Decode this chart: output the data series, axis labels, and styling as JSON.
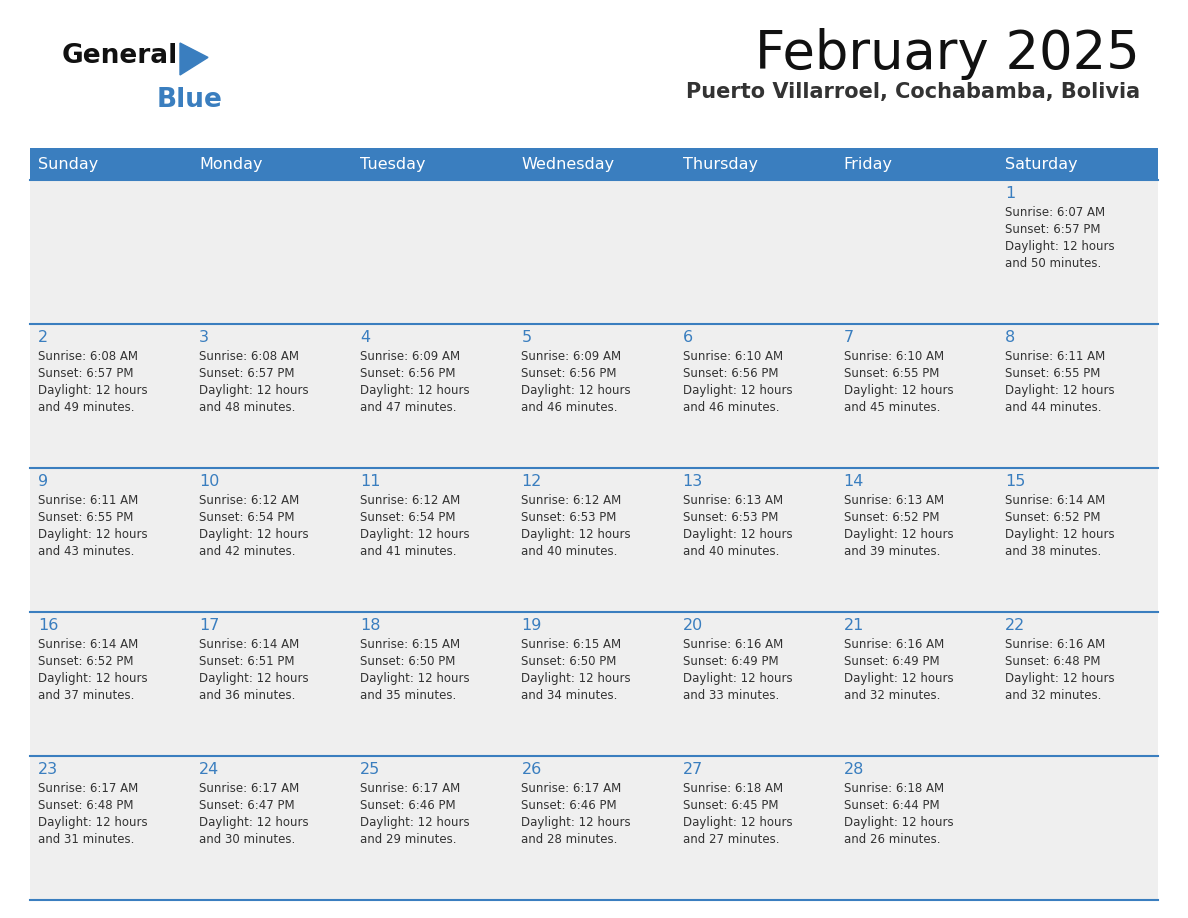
{
  "title": "February 2025",
  "subtitle": "Puerto Villarroel, Cochabamba, Bolivia",
  "header_color": "#3a7ebf",
  "header_text_color": "#ffffff",
  "cell_bg_color": "#efefef",
  "border_color": "#3a7ebf",
  "text_color": "#333333",
  "day_number_color": "#3a7ebf",
  "day_headers": [
    "Sunday",
    "Monday",
    "Tuesday",
    "Wednesday",
    "Thursday",
    "Friday",
    "Saturday"
  ],
  "days": [
    {
      "day": 1,
      "col": 6,
      "row": 0,
      "sunrise": "6:07 AM",
      "sunset": "6:57 PM",
      "daylight": "12 hours and 50 minutes"
    },
    {
      "day": 2,
      "col": 0,
      "row": 1,
      "sunrise": "6:08 AM",
      "sunset": "6:57 PM",
      "daylight": "12 hours and 49 minutes"
    },
    {
      "day": 3,
      "col": 1,
      "row": 1,
      "sunrise": "6:08 AM",
      "sunset": "6:57 PM",
      "daylight": "12 hours and 48 minutes"
    },
    {
      "day": 4,
      "col": 2,
      "row": 1,
      "sunrise": "6:09 AM",
      "sunset": "6:56 PM",
      "daylight": "12 hours and 47 minutes"
    },
    {
      "day": 5,
      "col": 3,
      "row": 1,
      "sunrise": "6:09 AM",
      "sunset": "6:56 PM",
      "daylight": "12 hours and 46 minutes"
    },
    {
      "day": 6,
      "col": 4,
      "row": 1,
      "sunrise": "6:10 AM",
      "sunset": "6:56 PM",
      "daylight": "12 hours and 46 minutes"
    },
    {
      "day": 7,
      "col": 5,
      "row": 1,
      "sunrise": "6:10 AM",
      "sunset": "6:55 PM",
      "daylight": "12 hours and 45 minutes"
    },
    {
      "day": 8,
      "col": 6,
      "row": 1,
      "sunrise": "6:11 AM",
      "sunset": "6:55 PM",
      "daylight": "12 hours and 44 minutes"
    },
    {
      "day": 9,
      "col": 0,
      "row": 2,
      "sunrise": "6:11 AM",
      "sunset": "6:55 PM",
      "daylight": "12 hours and 43 minutes"
    },
    {
      "day": 10,
      "col": 1,
      "row": 2,
      "sunrise": "6:12 AM",
      "sunset": "6:54 PM",
      "daylight": "12 hours and 42 minutes"
    },
    {
      "day": 11,
      "col": 2,
      "row": 2,
      "sunrise": "6:12 AM",
      "sunset": "6:54 PM",
      "daylight": "12 hours and 41 minutes"
    },
    {
      "day": 12,
      "col": 3,
      "row": 2,
      "sunrise": "6:12 AM",
      "sunset": "6:53 PM",
      "daylight": "12 hours and 40 minutes"
    },
    {
      "day": 13,
      "col": 4,
      "row": 2,
      "sunrise": "6:13 AM",
      "sunset": "6:53 PM",
      "daylight": "12 hours and 40 minutes"
    },
    {
      "day": 14,
      "col": 5,
      "row": 2,
      "sunrise": "6:13 AM",
      "sunset": "6:52 PM",
      "daylight": "12 hours and 39 minutes"
    },
    {
      "day": 15,
      "col": 6,
      "row": 2,
      "sunrise": "6:14 AM",
      "sunset": "6:52 PM",
      "daylight": "12 hours and 38 minutes"
    },
    {
      "day": 16,
      "col": 0,
      "row": 3,
      "sunrise": "6:14 AM",
      "sunset": "6:52 PM",
      "daylight": "12 hours and 37 minutes"
    },
    {
      "day": 17,
      "col": 1,
      "row": 3,
      "sunrise": "6:14 AM",
      "sunset": "6:51 PM",
      "daylight": "12 hours and 36 minutes"
    },
    {
      "day": 18,
      "col": 2,
      "row": 3,
      "sunrise": "6:15 AM",
      "sunset": "6:50 PM",
      "daylight": "12 hours and 35 minutes"
    },
    {
      "day": 19,
      "col": 3,
      "row": 3,
      "sunrise": "6:15 AM",
      "sunset": "6:50 PM",
      "daylight": "12 hours and 34 minutes"
    },
    {
      "day": 20,
      "col": 4,
      "row": 3,
      "sunrise": "6:16 AM",
      "sunset": "6:49 PM",
      "daylight": "12 hours and 33 minutes"
    },
    {
      "day": 21,
      "col": 5,
      "row": 3,
      "sunrise": "6:16 AM",
      "sunset": "6:49 PM",
      "daylight": "12 hours and 32 minutes"
    },
    {
      "day": 22,
      "col": 6,
      "row": 3,
      "sunrise": "6:16 AM",
      "sunset": "6:48 PM",
      "daylight": "12 hours and 32 minutes"
    },
    {
      "day": 23,
      "col": 0,
      "row": 4,
      "sunrise": "6:17 AM",
      "sunset": "6:48 PM",
      "daylight": "12 hours and 31 minutes"
    },
    {
      "day": 24,
      "col": 1,
      "row": 4,
      "sunrise": "6:17 AM",
      "sunset": "6:47 PM",
      "daylight": "12 hours and 30 minutes"
    },
    {
      "day": 25,
      "col": 2,
      "row": 4,
      "sunrise": "6:17 AM",
      "sunset": "6:46 PM",
      "daylight": "12 hours and 29 minutes"
    },
    {
      "day": 26,
      "col": 3,
      "row": 4,
      "sunrise": "6:17 AM",
      "sunset": "6:46 PM",
      "daylight": "12 hours and 28 minutes"
    },
    {
      "day": 27,
      "col": 4,
      "row": 4,
      "sunrise": "6:18 AM",
      "sunset": "6:45 PM",
      "daylight": "12 hours and 27 minutes"
    },
    {
      "day": 28,
      "col": 5,
      "row": 4,
      "sunrise": "6:18 AM",
      "sunset": "6:44 PM",
      "daylight": "12 hours and 26 minutes"
    }
  ],
  "num_rows": 5,
  "logo_text_general": "General",
  "logo_text_blue": "Blue",
  "logo_general_color": "#111111",
  "logo_blue_color": "#3a7ebf",
  "logo_triangle_color": "#3a7ebf"
}
